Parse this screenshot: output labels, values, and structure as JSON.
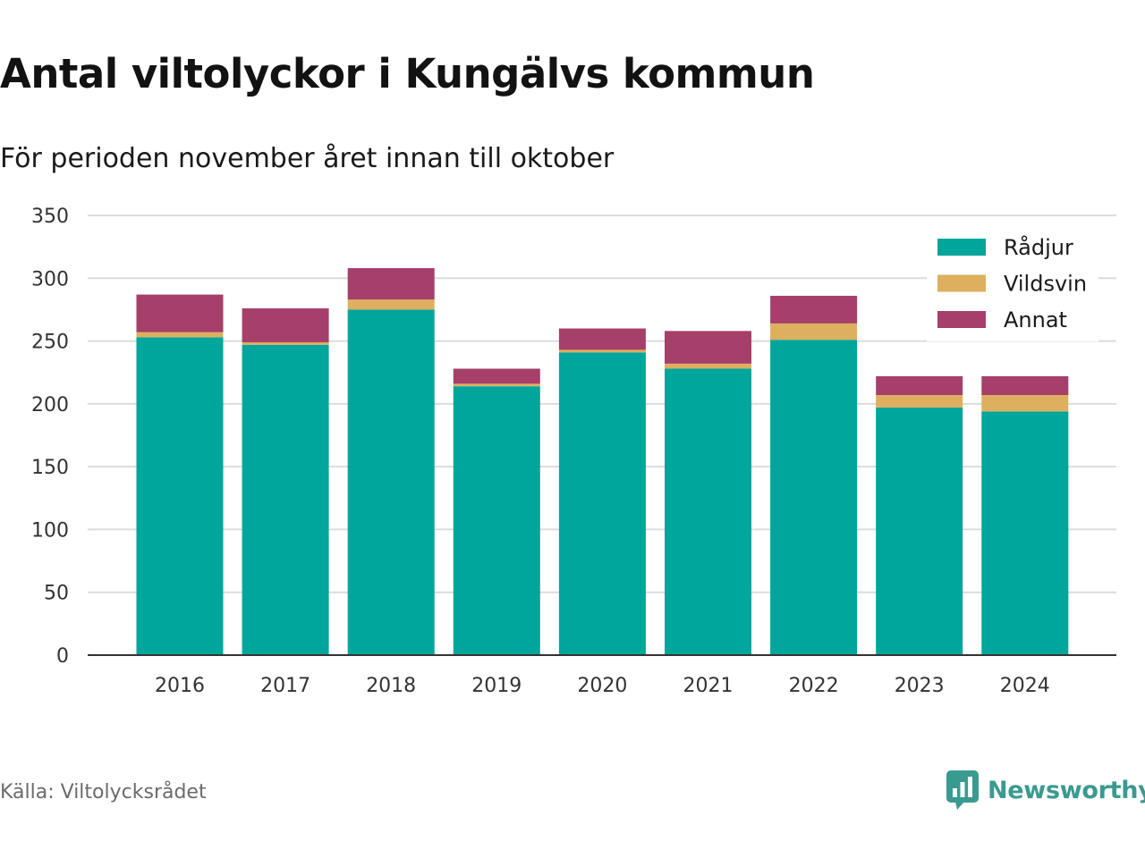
{
  "title": "Antal viltolyckor i Kungälvs kommun",
  "subtitle": "För perioden november året innan till oktober",
  "source": "Källa: Viltolycksrådet",
  "brand": {
    "name": "Newsworthy",
    "icon": "newsworthy-logo-icon"
  },
  "colors": {
    "Rådjur": "#00a59b",
    "Vildsvin": "#deaf5e",
    "Annat": "#a63f6a",
    "grid": "#dcdcdc",
    "axis": "#333333"
  },
  "chart_data": {
    "type": "bar",
    "stacked": true,
    "categories": [
      "2016",
      "2017",
      "2018",
      "2019",
      "2020",
      "2021",
      "2022",
      "2023",
      "2024"
    ],
    "series": [
      {
        "name": "Rådjur",
        "values": [
          253,
          247,
          275,
          214,
          241,
          228,
          251,
          197,
          194
        ]
      },
      {
        "name": "Vildsvin",
        "values": [
          4,
          2,
          8,
          2,
          2,
          4,
          13,
          10,
          13
        ]
      },
      {
        "name": "Annat",
        "values": [
          30,
          27,
          25,
          12,
          17,
          26,
          22,
          15,
          15
        ]
      }
    ],
    "yticks": [
      0,
      50,
      100,
      150,
      200,
      250,
      300,
      350
    ],
    "ylim": [
      0,
      350
    ],
    "grid": true,
    "legend": "top-right"
  }
}
